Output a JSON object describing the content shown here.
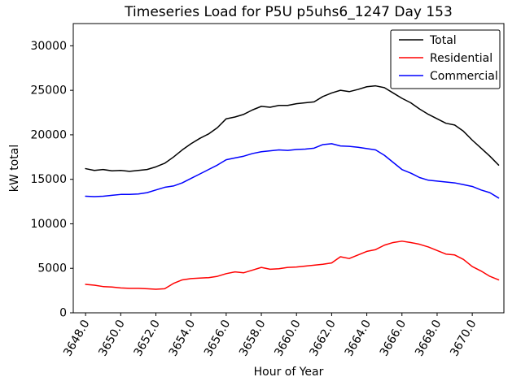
{
  "figure": {
    "background": "#ffffff"
  },
  "chart_data": {
    "type": "line",
    "title": "Timeseries Load for P5U p5uhs6_1247  Day 153",
    "xlabel": "Hour of Year",
    "ylabel": "kW total",
    "xlim": [
      3647.3,
      3671.8
    ],
    "ylim": [
      0,
      32500
    ],
    "grid": false,
    "legend_position": "upper right",
    "legend_border_color": "#000000",
    "x_ticks": [
      3648,
      3650,
      3652,
      3654,
      3656,
      3658,
      3660,
      3662,
      3664,
      3666,
      3668,
      3670
    ],
    "x_tick_labels": [
      "3648.0",
      "3650.0",
      "3652.0",
      "3654.0",
      "3656.0",
      "3658.0",
      "3660.0",
      "3662.0",
      "3664.0",
      "3666.0",
      "3668.0",
      "3670.0"
    ],
    "y_ticks": [
      0,
      5000,
      10000,
      15000,
      20000,
      25000,
      30000
    ],
    "y_tick_labels": [
      "0",
      "5000",
      "10000",
      "15000",
      "20000",
      "25000",
      "30000"
    ],
    "x": [
      3648.0,
      3648.5,
      3649.0,
      3649.5,
      3650.0,
      3650.5,
      3651.0,
      3651.5,
      3652.0,
      3652.5,
      3653.0,
      3653.5,
      3654.0,
      3654.5,
      3655.0,
      3655.5,
      3656.0,
      3656.5,
      3657.0,
      3657.5,
      3658.0,
      3658.5,
      3659.0,
      3659.5,
      3660.0,
      3660.5,
      3661.0,
      3661.5,
      3662.0,
      3662.5,
      3663.0,
      3663.5,
      3664.0,
      3664.5,
      3665.0,
      3665.5,
      3666.0,
      3666.5,
      3667.0,
      3667.5,
      3668.0,
      3668.5,
      3669.0,
      3669.5,
      3670.0,
      3670.5,
      3671.0,
      3671.5
    ],
    "series": [
      {
        "name": "Total",
        "color": "#000000",
        "values": [
          16200,
          16000,
          16100,
          15950,
          16000,
          15900,
          16000,
          16100,
          16400,
          16800,
          17500,
          18300,
          19000,
          19600,
          20100,
          20800,
          21800,
          22000,
          22300,
          22800,
          23200,
          23100,
          23300,
          23300,
          23500,
          23600,
          23700,
          24300,
          24700,
          25000,
          24850,
          25100,
          25400,
          25500,
          25300,
          24700,
          24100,
          23600,
          22900,
          22300,
          21800,
          21300,
          21100,
          20400,
          19400,
          18500,
          17600,
          16600
        ]
      },
      {
        "name": "Residential",
        "color": "#ff0000",
        "values": [
          3200,
          3100,
          2950,
          2900,
          2800,
          2750,
          2750,
          2700,
          2650,
          2700,
          3300,
          3700,
          3850,
          3900,
          3950,
          4100,
          4400,
          4600,
          4500,
          4800,
          5100,
          4900,
          4950,
          5100,
          5150,
          5250,
          5350,
          5450,
          5600,
          6300,
          6100,
          6500,
          6900,
          7100,
          7600,
          7900,
          8050,
          7900,
          7700,
          7400,
          7000,
          6600,
          6500,
          6000,
          5200,
          4700,
          4100,
          3700
        ]
      },
      {
        "name": "Commercial",
        "color": "#0000ff",
        "values": [
          13100,
          13050,
          13100,
          13200,
          13300,
          13300,
          13350,
          13500,
          13800,
          14100,
          14250,
          14600,
          15100,
          15600,
          16100,
          16600,
          17200,
          17400,
          17600,
          17900,
          18100,
          18200,
          18300,
          18250,
          18350,
          18400,
          18500,
          18900,
          19000,
          18750,
          18700,
          18600,
          18450,
          18300,
          17700,
          16900,
          16100,
          15700,
          15200,
          14900,
          14800,
          14700,
          14600,
          14400,
          14200,
          13800,
          13500,
          12900
        ]
      }
    ]
  }
}
